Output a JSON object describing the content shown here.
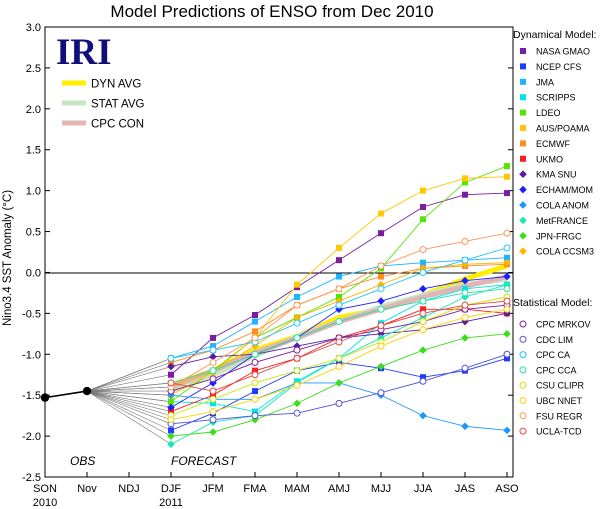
{
  "chart_data": {
    "type": "line",
    "title": "Model Predictions of ENSO from Dec 2010",
    "logo": "IRI",
    "ylabel": "Nino3.4 SST Anomaly (°C)",
    "xlabel": "",
    "categories": [
      "SON",
      "Nov",
      "NDJ",
      "DJF",
      "JFM",
      "FMA",
      "MAM",
      "AMJ",
      "MJJ",
      "JJA",
      "JAS",
      "ASO"
    ],
    "x_sublabels": [
      {
        "under": "SON",
        "text": "2010"
      },
      {
        "under": "DJF",
        "text": "2011"
      }
    ],
    "ylim": [
      -2.5,
      3.0
    ],
    "yticks": [
      "3.0",
      "2.5",
      "2.0",
      "1.5",
      "1.0",
      "0.5",
      "0.0",
      "-0.5",
      "-1.0",
      "-1.5",
      "-2.0",
      "-2.5"
    ],
    "region_labels": {
      "obs": "OBS",
      "forecast": "FORECAST"
    },
    "observed": {
      "values": [
        -1.53,
        -1.45
      ]
    },
    "averages": [
      {
        "name": "DYN AVG",
        "color": "#ffee00",
        "values": [
          -1.38,
          -1.2,
          -0.95,
          -0.78,
          -0.55,
          -0.45,
          -0.28,
          -0.08,
          0.08
        ]
      },
      {
        "name": "STAT AVG",
        "color": "#c8e6c0",
        "values": [
          -1.45,
          -1.25,
          -1.02,
          -0.78,
          -0.6,
          -0.42,
          -0.28,
          -0.15,
          -0.08
        ]
      },
      {
        "name": "CPC CON",
        "color": "#e2b4b4",
        "values": [
          -1.4,
          -1.2,
          -0.98,
          -0.8,
          -0.6,
          -0.45,
          -0.3,
          -0.17,
          -0.05
        ]
      }
    ],
    "legend_dynamical_title": "Dynamical Model:",
    "legend_statistical_title": "Statistical Model:",
    "dynamical_models": [
      {
        "name": "NASA GMAO",
        "color": "#7a1ea1",
        "values": [
          -1.25,
          -0.8,
          -0.52,
          -0.18,
          0.15,
          0.48,
          0.8,
          0.95,
          0.97
        ]
      },
      {
        "name": "NCEP CFS",
        "color": "#1e3cff",
        "values": [
          -1.93,
          -1.72,
          -1.45,
          -1.2,
          -1.1,
          -1.17,
          -1.28,
          -1.2,
          -1.05
        ]
      },
      {
        "name": "JMA",
        "color": "#1eb4ff",
        "values": [
          -1.05,
          -0.9,
          -0.6,
          -0.3,
          -0.05,
          0.08,
          0.12,
          0.15,
          0.18
        ]
      },
      {
        "name": "SCRIPPS",
        "color": "#00e6e6",
        "values": [
          -1.58,
          -1.6,
          -1.7,
          -1.33,
          -1.05,
          -0.62,
          -0.35,
          -0.2,
          -0.15
        ]
      },
      {
        "name": "LDEO",
        "color": "#55e600",
        "values": [
          -1.58,
          -1.2,
          -0.8,
          -0.55,
          -0.3,
          0.05,
          0.65,
          1.1,
          1.3
        ]
      },
      {
        "name": "AUS/POAMA",
        "color": "#ffc800",
        "values": [
          -1.5,
          -1.22,
          -0.8,
          -0.15,
          0.3,
          0.72,
          1.0,
          1.15,
          1.17
        ]
      },
      {
        "name": "ECMWF",
        "color": "#ff8c1e",
        "values": [
          -1.1,
          -0.95,
          -0.72,
          -0.4,
          -0.2,
          -0.05,
          0.05,
          0.08,
          0.1
        ]
      },
      {
        "name": "UKMO",
        "color": "#ff1e1e",
        "values": [
          -1.7,
          -1.5,
          -1.2,
          -1.05,
          -0.8,
          -0.65,
          -0.45,
          -0.45,
          -0.5
        ]
      },
      {
        "name": "KMA SNU",
        "color": "#5a1ea1",
        "values": [
          -1.15,
          -1.03,
          -1.0,
          -0.9,
          -0.8,
          -0.75,
          -0.7,
          -0.6,
          -0.5
        ]
      },
      {
        "name": "ECHAM/MOM",
        "color": "#1e1eff",
        "values": [
          -1.65,
          -1.35,
          -1.0,
          -0.8,
          -0.45,
          -0.35,
          -0.2,
          -0.1,
          -0.05
        ]
      },
      {
        "name": "COLA ANOM",
        "color": "#1e96ff",
        "values": [
          -1.5,
          -1.55,
          -1.55,
          -1.35,
          -1.35,
          -1.5,
          -1.75,
          -1.88,
          -1.93
        ]
      },
      {
        "name": "MetFRANCE",
        "color": "#1ee6b4",
        "values": [
          -2.1,
          -1.83,
          -1.75,
          -1.35,
          -1.05,
          -0.8,
          -0.55,
          -0.3,
          -0.15
        ]
      },
      {
        "name": "JPN-FRGC",
        "color": "#3cdc1e",
        "values": [
          -2.0,
          -1.95,
          -1.8,
          -1.6,
          -1.35,
          -1.15,
          -0.95,
          -0.8,
          -0.75
        ]
      },
      {
        "name": "COLA CCSM3",
        "color": "#ffb400",
        "values": [
          -1.4,
          -1.2,
          -0.9,
          -0.55,
          -0.35,
          -0.15,
          0.05,
          0.1,
          0.12
        ]
      }
    ],
    "statistical_models": [
      {
        "name": "CPC MRKOV",
        "color": "#7a1ea1",
        "values": [
          -1.45,
          -1.3,
          -1.1,
          -0.95,
          -0.8,
          -0.7,
          -0.6,
          -0.45,
          -0.4
        ]
      },
      {
        "name": "CDC LIM",
        "color": "#5050dc",
        "values": [
          -1.85,
          -1.8,
          -1.75,
          -1.72,
          -1.6,
          -1.47,
          -1.33,
          -1.17,
          -1.0
        ]
      },
      {
        "name": "CPC CA",
        "color": "#1ec8ff",
        "values": [
          -1.05,
          -0.95,
          -0.85,
          -0.62,
          -0.4,
          -0.2,
          0.0,
          0.15,
          0.3
        ]
      },
      {
        "name": "CPC CCA",
        "color": "#1ee6a0",
        "values": [
          -1.35,
          -1.2,
          -1.0,
          -0.8,
          -0.6,
          -0.45,
          -0.35,
          -0.25,
          -0.2
        ]
      },
      {
        "name": "CSU CLIPR",
        "color": "#c8e600",
        "values": [
          -1.75,
          -1.55,
          -1.35,
          -1.2,
          -1.05,
          -0.85,
          -0.6,
          -0.4,
          -0.3
        ]
      },
      {
        "name": "UBC NNET",
        "color": "#ffd200",
        "values": [
          -1.8,
          -1.7,
          -1.55,
          -1.38,
          -1.15,
          -0.9,
          -0.7,
          -0.55,
          -0.45
        ]
      },
      {
        "name": "FSU REGR",
        "color": "#ff9650",
        "values": [
          -1.4,
          -1.1,
          -0.8,
          -0.4,
          -0.2,
          0.08,
          0.28,
          0.38,
          0.48
        ]
      },
      {
        "name": "UCLA-TCD",
        "color": "#e64646",
        "values": [
          -1.35,
          -1.45,
          -1.25,
          -1.05,
          -0.85,
          -0.65,
          -0.5,
          -0.4,
          -0.35
        ]
      }
    ]
  }
}
